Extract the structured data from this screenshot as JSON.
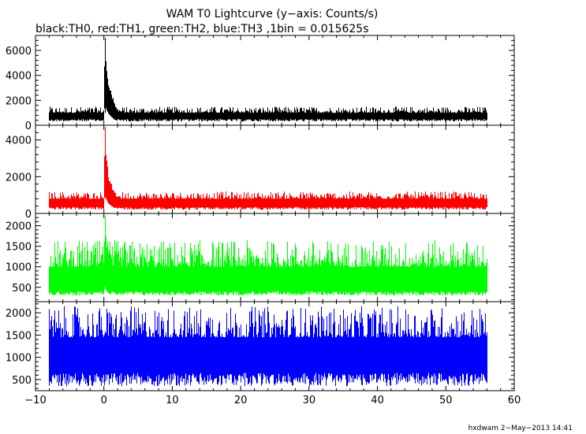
{
  "title": "WAM T0 Lightcurve (y−axis: Counts/s)",
  "subtitle": "black:TH0, red:TH1, green:TH2, blue:TH3 ,1bin = 0.015625s",
  "footer": "hxdwam  2−May−2013 14:41",
  "chart_data": {
    "type": "line",
    "title": "WAM T0 Lightcurve (y−axis: Counts/s)",
    "subtitle": "black:TH0, red:TH1, green:TH2, blue:TH3 ,1bin = 0.015625s",
    "xlabel": "",
    "ylabel": "",
    "xlim": [
      -10,
      60
    ],
    "x_ticks": [
      -10,
      0,
      10,
      20,
      30,
      40,
      50,
      60
    ],
    "x_tick_labels": [
      "−10",
      "0",
      "10",
      "20",
      "30",
      "40",
      "50",
      "60"
    ],
    "x_range_data": [
      -8,
      56
    ],
    "bin_size": 0.015625,
    "grid": false,
    "panels": [
      {
        "name": "TH0",
        "color": "#000000",
        "ylim": [
          0,
          7200
        ],
        "y_ticks": [
          0,
          2000,
          4000,
          6000
        ],
        "y_tick_labels": [
          "0",
          "2000",
          "4000",
          "6000"
        ],
        "baseline": [
          500,
          1000
        ],
        "noise_low": 300,
        "noise_high": 1500,
        "peak": {
          "x": 0.1,
          "y": 7000
        },
        "profile": [
          [
            0.0,
            4500
          ],
          [
            0.1,
            7000
          ],
          [
            0.3,
            5200
          ],
          [
            0.6,
            3800
          ],
          [
            1.0,
            2800
          ],
          [
            1.5,
            1800
          ],
          [
            2.2,
            1100
          ]
        ]
      },
      {
        "name": "TH1",
        "color": "#ff0000",
        "ylim": [
          0,
          4800
        ],
        "y_ticks": [
          0,
          2000,
          4000
        ],
        "y_tick_labels": [
          "0",
          "2000",
          "4000"
        ],
        "baseline": [
          350,
          800
        ],
        "noise_low": 200,
        "noise_high": 1200,
        "peak": {
          "x": 0.1,
          "y": 4700
        },
        "profile": [
          [
            0.0,
            2800
          ],
          [
            0.1,
            4700
          ],
          [
            0.3,
            3200
          ],
          [
            0.6,
            2200
          ],
          [
            1.0,
            1700
          ],
          [
            1.5,
            1200
          ],
          [
            2.2,
            850
          ]
        ]
      },
      {
        "name": "TH2",
        "color": "#00ff00",
        "ylim": [
          150,
          2300
        ],
        "y_ticks": [
          500,
          1000,
          1500,
          2000
        ],
        "y_tick_labels": [
          "500",
          "1000",
          "1500",
          "2000"
        ],
        "baseline": [
          400,
          1000
        ],
        "noise_low": 300,
        "noise_high": 1650,
        "peak": {
          "x": 0.1,
          "y": 2250
        },
        "profile": [
          [
            0.0,
            1600
          ],
          [
            0.1,
            2250
          ],
          [
            0.3,
            1650
          ],
          [
            0.6,
            1450
          ],
          [
            1.0,
            1300
          ]
        ]
      },
      {
        "name": "TH3",
        "color": "#0000ff",
        "ylim": [
          250,
          2250
        ],
        "y_ticks": [
          500,
          1000,
          1500,
          2000
        ],
        "y_tick_labels": [
          "500",
          "1000",
          "1500",
          "2000"
        ],
        "baseline": [
          650,
          1450
        ],
        "noise_low": 350,
        "noise_high": 2150,
        "peak": null,
        "profile": []
      }
    ]
  }
}
